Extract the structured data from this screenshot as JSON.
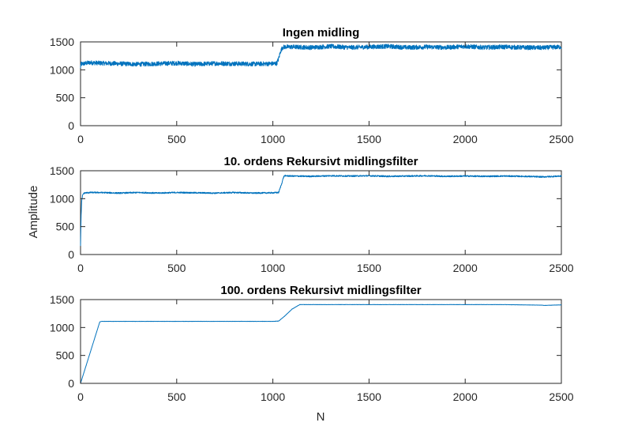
{
  "figure": {
    "series_color": "#0072BD",
    "xlabel": "N",
    "shared_ylabel": "Amplitude"
  },
  "chart_data": [
    {
      "type": "line",
      "title": "Ingen midling",
      "xlabel": "",
      "ylabel": "",
      "xlim": [
        0,
        2500
      ],
      "ylim": [
        0,
        1500
      ],
      "x_ticks": [
        "0",
        "500",
        "1000",
        "1500",
        "2000",
        "2500"
      ],
      "y_ticks": [
        "0",
        "500",
        "1000",
        "1500"
      ],
      "grid": false,
      "series": [
        {
          "x": [
            0,
            1,
            15,
            50,
            100,
            200,
            300,
            400,
            500,
            600,
            700,
            800,
            900,
            1000,
            1020,
            1030,
            1040,
            1050,
            1060,
            1100,
            1200,
            1300,
            1400,
            1500,
            1600,
            1700,
            1800,
            1900,
            2000,
            2100,
            2200,
            2300,
            2400,
            2500
          ],
          "y": [
            1020,
            1100,
            1110,
            1130,
            1120,
            1110,
            1100,
            1110,
            1120,
            1100,
            1115,
            1110,
            1105,
            1110,
            1115,
            1200,
            1330,
            1400,
            1410,
            1410,
            1400,
            1420,
            1400,
            1410,
            1420,
            1400,
            1410,
            1400,
            1420,
            1400,
            1410,
            1400,
            1395,
            1410
          ],
          "noise_amplitude": 40
        }
      ]
    },
    {
      "type": "line",
      "title": "10. ordens Rekursivt midlingsfilter",
      "xlabel": "",
      "ylabel": "Amplitude",
      "xlim": [
        0,
        2500
      ],
      "ylim": [
        0,
        1500
      ],
      "x_ticks": [
        "0",
        "500",
        "1000",
        "1500",
        "2000",
        "2500"
      ],
      "y_ticks": [
        "0",
        "500",
        "1000",
        "1500"
      ],
      "grid": false,
      "series": [
        {
          "x": [
            0,
            1,
            3,
            6,
            10,
            15,
            20,
            30,
            50,
            100,
            200,
            300,
            400,
            500,
            600,
            700,
            800,
            900,
            1000,
            1030,
            1045,
            1055,
            1060,
            1100,
            1200,
            1300,
            1400,
            1500,
            1600,
            1700,
            1800,
            1900,
            2000,
            2100,
            2200,
            2300,
            2400,
            2500
          ],
          "y": [
            150,
            350,
            700,
            950,
            1050,
            1090,
            1100,
            1105,
            1110,
            1110,
            1100,
            1110,
            1100,
            1110,
            1105,
            1100,
            1110,
            1100,
            1105,
            1110,
            1260,
            1380,
            1410,
            1405,
            1400,
            1410,
            1405,
            1410,
            1400,
            1405,
            1410,
            1400,
            1405,
            1400,
            1405,
            1400,
            1390,
            1405
          ],
          "noise_amplitude": 12
        }
      ]
    },
    {
      "type": "line",
      "title": "100. ordens Rekursivt midlingsfilter",
      "xlabel": "N",
      "ylabel": "",
      "xlim": [
        0,
        2500
      ],
      "ylim": [
        0,
        1500
      ],
      "x_ticks": [
        "0",
        "500",
        "1000",
        "1500",
        "2000",
        "2500"
      ],
      "y_ticks": [
        "0",
        "500",
        "1000",
        "1500"
      ],
      "grid": false,
      "series": [
        {
          "x": [
            0,
            100,
            110,
            200,
            400,
            600,
            800,
            1000,
            1030,
            1060,
            1100,
            1140,
            1200,
            1400,
            1600,
            1800,
            2000,
            2200,
            2400,
            2410,
            2500
          ],
          "y": [
            0,
            1100,
            1110,
            1110,
            1110,
            1110,
            1110,
            1110,
            1115,
            1200,
            1330,
            1410,
            1410,
            1410,
            1410,
            1410,
            1410,
            1410,
            1400,
            1395,
            1405
          ],
          "noise_amplitude": 2
        }
      ]
    }
  ]
}
